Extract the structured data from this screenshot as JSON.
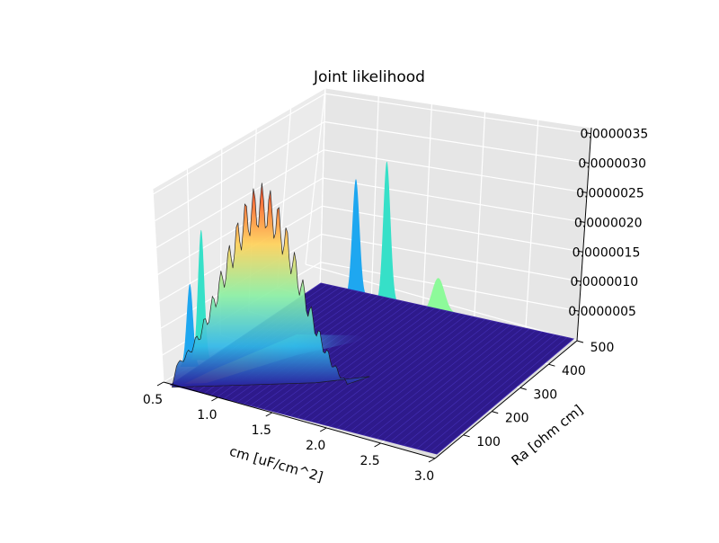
{
  "chart_data": {
    "type": "surface",
    "title": "Joint likelihood",
    "xlabel": "cm [uF/cm^2]",
    "ylabel": "Ra [ohm cm]",
    "zlabel": "",
    "xlim": [
      0.5,
      3.0
    ],
    "ylim": [
      0,
      500
    ],
    "zlim": [
      0,
      3.6e-06
    ],
    "x_ticks": [
      "0.5",
      "1.0",
      "1.5",
      "2.0",
      "2.5",
      "3.0"
    ],
    "y_ticks": [
      "100",
      "200",
      "300",
      "400",
      "500"
    ],
    "z_ticks": [
      "0.0000005",
      "0.0000010",
      "0.0000015",
      "0.0000020",
      "0.0000025",
      "0.0000030",
      "0.0000035"
    ],
    "colormap": "jet",
    "grid": true,
    "surface_peak": {
      "cm": 0.85,
      "Ra": 120,
      "likelihood": 3.3e-06
    },
    "projections": {
      "x_wall": [
        {
          "cm": 0.55,
          "height": 1.4e-06,
          "color": "#1ea7f0"
        },
        {
          "cm": 0.75,
          "height": 2.2e-06,
          "color": "#36e0c8"
        }
      ],
      "y_wall": [
        {
          "Ra": 70,
          "height": 2e-06,
          "color": "#1ea7f0"
        },
        {
          "Ra": 130,
          "height": 2.4e-06,
          "color": "#36e0c8"
        },
        {
          "Ra": 230,
          "height": 6e-07,
          "color": "#8dfa9a"
        }
      ]
    }
  }
}
